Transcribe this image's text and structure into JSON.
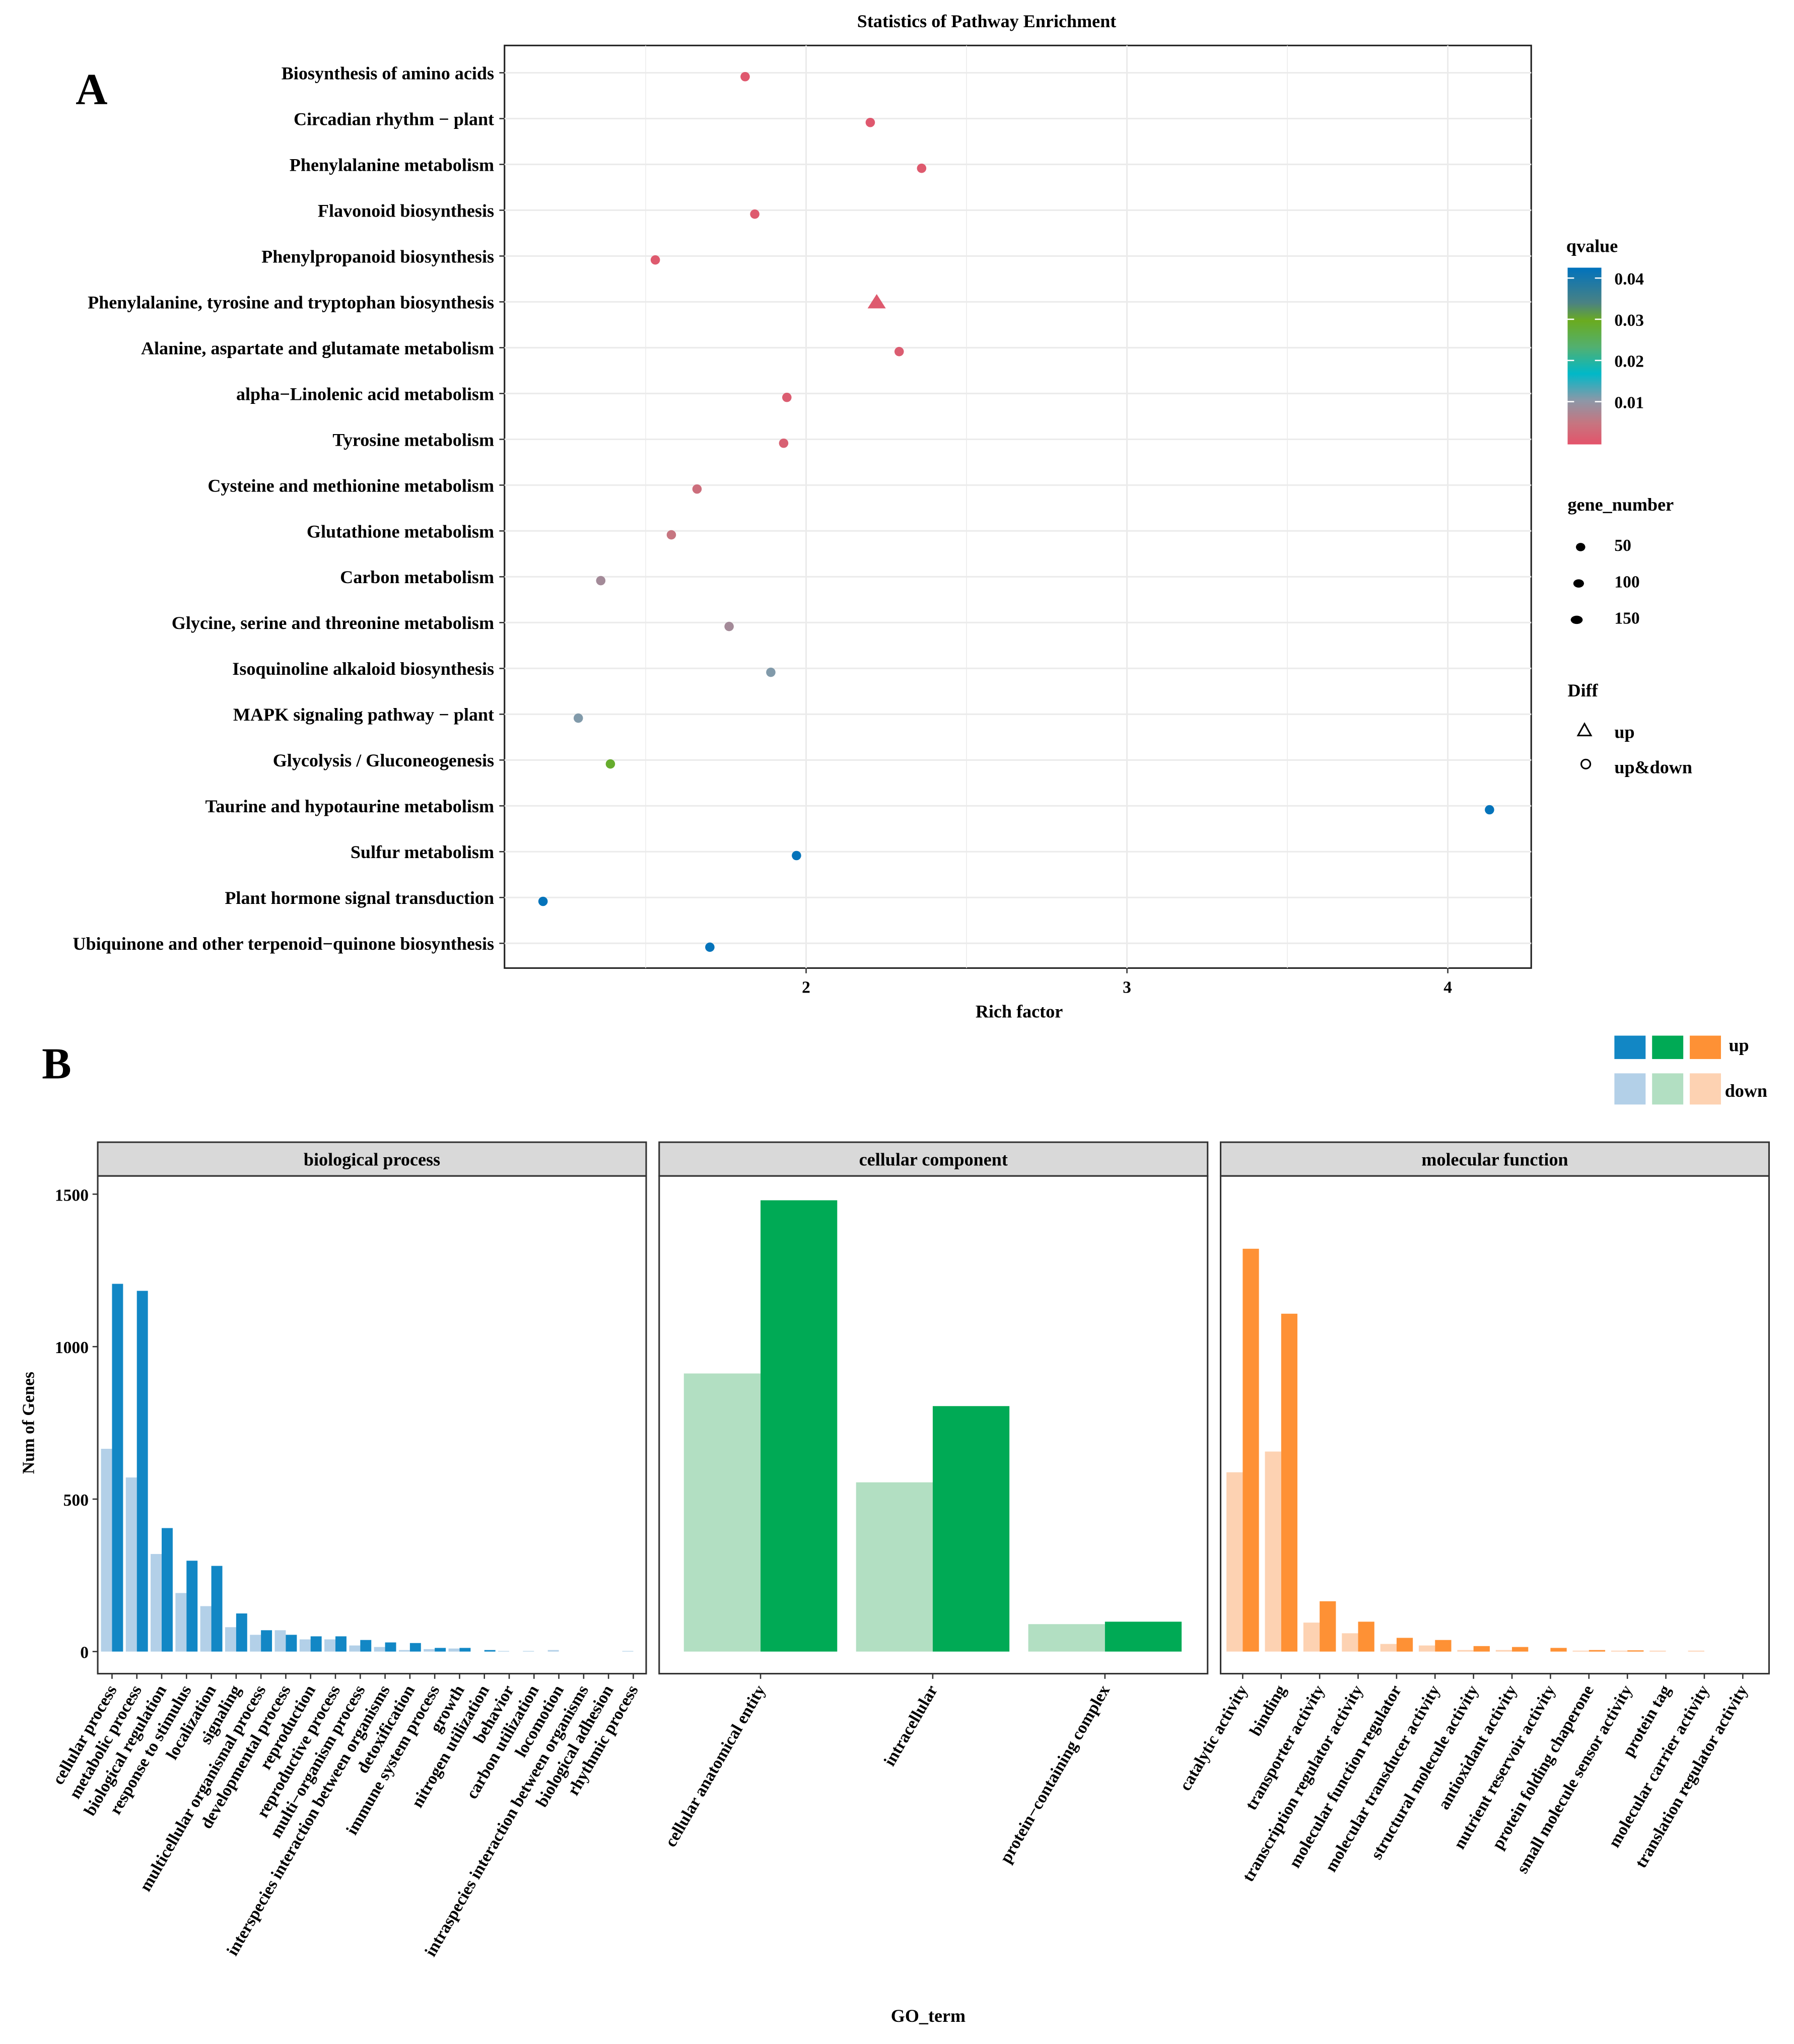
{
  "chart_data": [
    {
      "type": "scatter",
      "panel_label": "A",
      "title": "Statistics of Pathway Enrichment",
      "xlabel": "Rich factor",
      "xlim": [
        1.06,
        4.26
      ],
      "xticks": [
        2,
        3,
        4
      ],
      "grid": true,
      "pathways": [
        {
          "name": "Biosynthesis of amino acids",
          "rich_factor": 1.81,
          "qvalue": 0.0008,
          "diff": "up&down"
        },
        {
          "name": "Circadian rhythm − plant",
          "rich_factor": 2.2,
          "qvalue": 0.0008,
          "diff": "up&down"
        },
        {
          "name": "Phenylalanine metabolism",
          "rich_factor": 2.36,
          "qvalue": 0.001,
          "diff": "up&down"
        },
        {
          "name": "Flavonoid biosynthesis",
          "rich_factor": 1.84,
          "qvalue": 0.001,
          "diff": "up&down"
        },
        {
          "name": "Phenylpropanoid biosynthesis",
          "rich_factor": 1.53,
          "qvalue": 0.001,
          "diff": "up&down"
        },
        {
          "name": "Phenylalanine, tyrosine and tryptophan biosynthesis",
          "rich_factor": 2.22,
          "qvalue": 0.001,
          "diff": "up"
        },
        {
          "name": "Alanine, aspartate and glutamate metabolism",
          "rich_factor": 2.29,
          "qvalue": 0.0015,
          "diff": "up&down"
        },
        {
          "name": "alpha−Linolenic acid metabolism",
          "rich_factor": 1.94,
          "qvalue": 0.0015,
          "diff": "up&down"
        },
        {
          "name": "Tyrosine metabolism",
          "rich_factor": 1.93,
          "qvalue": 0.002,
          "diff": "up&down"
        },
        {
          "name": "Cysteine and methionine metabolism",
          "rich_factor": 1.66,
          "qvalue": 0.004,
          "diff": "up&down"
        },
        {
          "name": "Glutathione metabolism",
          "rich_factor": 1.58,
          "qvalue": 0.005,
          "diff": "up&down"
        },
        {
          "name": "Carbon metabolism",
          "rich_factor": 1.36,
          "qvalue": 0.008,
          "diff": "up&down"
        },
        {
          "name": "Glycine, serine and threonine metabolism",
          "rich_factor": 1.76,
          "qvalue": 0.008,
          "diff": "up&down"
        },
        {
          "name": "Isoquinoline alkaloid biosynthesis",
          "rich_factor": 1.89,
          "qvalue": 0.0105,
          "diff": "up&down"
        },
        {
          "name": "MAPK signaling pathway − plant",
          "rich_factor": 1.29,
          "qvalue": 0.0105,
          "diff": "up&down"
        },
        {
          "name": "Glycolysis / Gluconeogenesis",
          "rich_factor": 1.39,
          "qvalue": 0.027,
          "diff": "up&down"
        },
        {
          "name": "Taurine and hypotaurine metabolism",
          "rich_factor": 4.13,
          "qvalue": 0.042,
          "diff": "up&down"
        },
        {
          "name": "Sulfur metabolism",
          "rich_factor": 1.97,
          "qvalue": 0.042,
          "diff": "up&down"
        },
        {
          "name": "Plant hormone signal transduction",
          "rich_factor": 1.18,
          "qvalue": 0.042,
          "diff": "up&down"
        },
        {
          "name": "Ubiquinone and other terpenoid−quinone biosynthesis",
          "rich_factor": 1.7,
          "qvalue": 0.042,
          "diff": "up&down"
        }
      ],
      "legend": {
        "qvalue_title": "qvalue",
        "qvalue_ticks": [
          "0.04",
          "0.03",
          "0.02",
          "0.01"
        ],
        "gene_number_title": "gene_number",
        "gene_number_values": [
          "50",
          "100",
          "150"
        ],
        "diff_title": "Diff",
        "diff_values": [
          "up",
          "up&down"
        ],
        "placement": "right"
      }
    },
    {
      "type": "bar",
      "panel_label": "B",
      "xlabel": "GO_term",
      "ylabel": "Num of Genes",
      "ylim": [
        0,
        1650
      ],
      "yticks": [
        "0",
        "500",
        "1000",
        "1500"
      ],
      "legend": {
        "up": "up",
        "down": "down",
        "placement": "top-right"
      },
      "colors": {
        "bp_up": "#1287c5",
        "bp_down": "#b3d0e8",
        "cc_up": "#00aa55",
        "cc_down": "#b2dfc2",
        "mf_up": "#fe9135",
        "mf_down": "#fdd2b2"
      },
      "facets": [
        {
          "name": "biological process",
          "key": "bp",
          "categories": [
            "cellular process",
            "metabolic process",
            "biological regulation",
            "response to stimulus",
            "localization",
            "signaling",
            "multicellular organismal process",
            "developmental process",
            "reproduction",
            "reproductive process",
            "multi−organism process",
            "interspecies interaction between organisms",
            "detoxification",
            "immune system process",
            "growth",
            "nitrogen utilization",
            "behavior",
            "carbon utilization",
            "locomotion",
            "intraspecies interaction between organisms",
            "biological adhesion",
            "rhythmic process"
          ],
          "down": [
            665,
            571,
            320,
            192,
            149,
            80,
            55,
            70,
            40,
            40,
            20,
            15,
            5,
            8,
            10,
            0,
            2,
            2,
            5,
            0,
            0,
            2
          ],
          "up": [
            1206,
            1183,
            405,
            298,
            281,
            125,
            70,
            55,
            50,
            50,
            38,
            30,
            28,
            12,
            12,
            5,
            0,
            0,
            0,
            0,
            0,
            0
          ]
        },
        {
          "name": "cellular component",
          "key": "cc",
          "categories": [
            "cellular anatomical entity",
            "intracellular",
            "protein−containing complex"
          ],
          "down": [
            912,
            555,
            90
          ],
          "up": [
            1480,
            805,
            98
          ]
        },
        {
          "name": "molecular function",
          "key": "mf",
          "categories": [
            "catalytic activity",
            "binding",
            "transporter activity",
            "transcription regulator activity",
            "molecular function regulator",
            "molecular transducer activity",
            "structural molecule activity",
            "antioxidant activity",
            "nutrient reservoir activity",
            "protein folding chaperone",
            "small molecule sensor activity",
            "protein tag",
            "molecular carrier activity",
            "translation regulator activity"
          ],
          "down": [
            588,
            656,
            95,
            60,
            25,
            20,
            5,
            5,
            0,
            3,
            3,
            3,
            3,
            0
          ],
          "up": [
            1321,
            1108,
            165,
            98,
            45,
            38,
            18,
            15,
            12,
            5,
            4,
            0,
            0,
            0
          ]
        }
      ]
    }
  ]
}
